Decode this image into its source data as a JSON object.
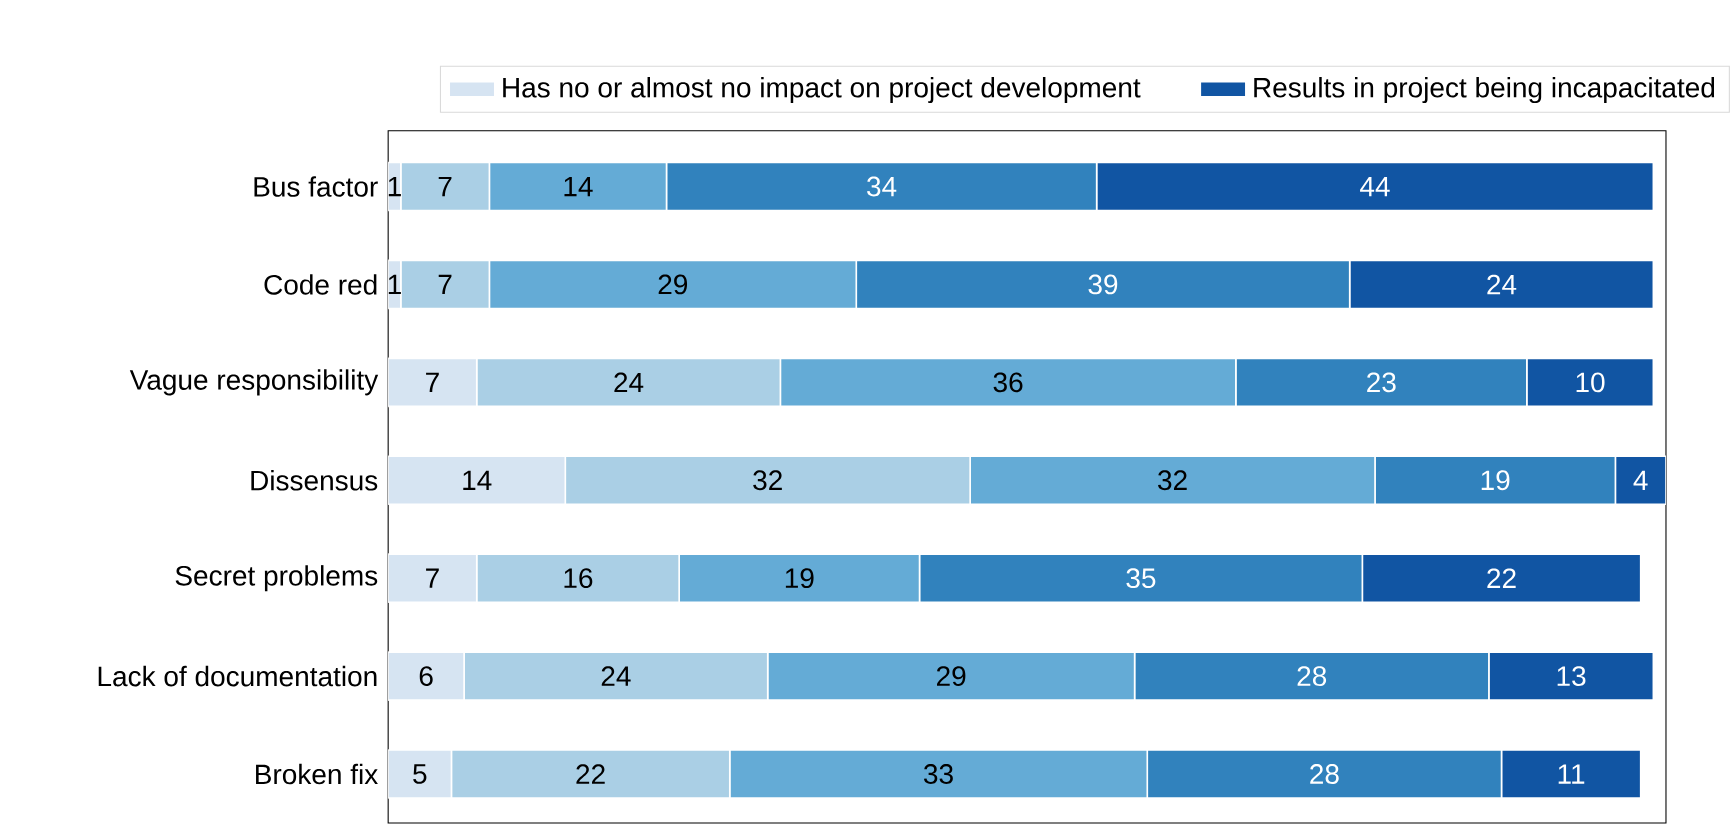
{
  "chart_data": {
    "type": "bar",
    "orientation": "horizontal",
    "stacked": true,
    "data_labels": true,
    "legend": "top right",
    "grid": false,
    "categories": [
      "Bus factor",
      "Code red",
      "Vague responsibility",
      "Dissensus",
      "Secret problems",
      "Lack of documentation",
      "Broken fix"
    ],
    "series": [
      {
        "name": "Has no or almost no impact on project development",
        "color": "#d6e4f2",
        "values": [
          1,
          1,
          7,
          14,
          7,
          6,
          5
        ]
      },
      {
        "color": "#aacfe5",
        "values": [
          7,
          7,
          24,
          32,
          16,
          24,
          22
        ]
      },
      {
        "color": "#64abd6",
        "values": [
          14,
          29,
          36,
          32,
          19,
          29,
          33
        ]
      },
      {
        "color": "#3182bd",
        "values": [
          34,
          39,
          23,
          19,
          35,
          28,
          28
        ]
      },
      {
        "name": "Results in project being incapacitated",
        "color": "#1155a3",
        "values": [
          44,
          24,
          10,
          4,
          22,
          13,
          11
        ]
      }
    ]
  }
}
